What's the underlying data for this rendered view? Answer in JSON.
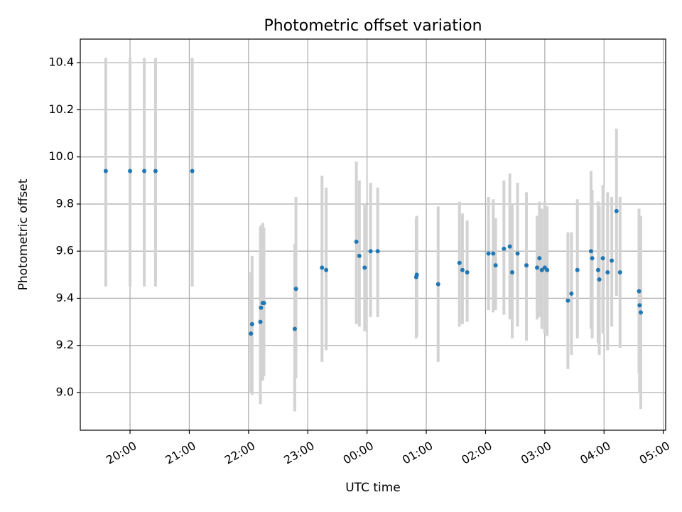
{
  "chart_data": {
    "type": "scatter",
    "title": "Photometric offset variation",
    "xlabel": "UTC time",
    "ylabel": "Photometric offset",
    "x_units": "hours relative to 00:00 UTC",
    "xlim": [
      -4.84,
      5.04
    ],
    "ylim": [
      8.84,
      10.5
    ],
    "x_ticks": [
      {
        "value": -4,
        "label": "20:00"
      },
      {
        "value": -3,
        "label": "21:00"
      },
      {
        "value": -2,
        "label": "22:00"
      },
      {
        "value": -1,
        "label": "23:00"
      },
      {
        "value": 0,
        "label": "00:00"
      },
      {
        "value": 1,
        "label": "01:00"
      },
      {
        "value": 2,
        "label": "02:00"
      },
      {
        "value": 3,
        "label": "03:00"
      },
      {
        "value": 4,
        "label": "04:00"
      },
      {
        "value": 5,
        "label": "05:00"
      }
    ],
    "y_ticks": [
      {
        "value": 9.0,
        "label": "9.0"
      },
      {
        "value": 9.2,
        "label": "9.2"
      },
      {
        "value": 9.4,
        "label": "9.4"
      },
      {
        "value": 9.6,
        "label": "9.6"
      },
      {
        "value": 9.8,
        "label": "9.8"
      },
      {
        "value": 10.0,
        "label": "10.0"
      },
      {
        "value": 10.2,
        "label": "10.2"
      },
      {
        "value": 10.4,
        "label": "10.4"
      }
    ],
    "grid": true,
    "marker_color": "#1f77b4",
    "errorbar_color": "#d3d3d3",
    "points": [
      {
        "x": -4.41,
        "y": 9.94,
        "ylo": 9.45,
        "yhi": 10.42
      },
      {
        "x": -4.0,
        "y": 9.94,
        "ylo": 9.45,
        "yhi": 10.42
      },
      {
        "x": -3.76,
        "y": 9.94,
        "ylo": 9.45,
        "yhi": 10.42
      },
      {
        "x": -3.57,
        "y": 9.94,
        "ylo": 9.45,
        "yhi": 10.42
      },
      {
        "x": -2.95,
        "y": 9.94,
        "ylo": 9.45,
        "yhi": 10.42
      },
      {
        "x": -1.96,
        "y": 9.25,
        "ylo": 9.0,
        "yhi": 9.51
      },
      {
        "x": -1.94,
        "y": 9.29,
        "ylo": 8.99,
        "yhi": 9.58
      },
      {
        "x": -1.8,
        "y": 9.3,
        "ylo": 8.95,
        "yhi": 9.7
      },
      {
        "x": -1.79,
        "y": 9.36,
        "ylo": 9.07,
        "yhi": 9.71
      },
      {
        "x": -1.76,
        "y": 9.38,
        "ylo": 9.05,
        "yhi": 9.72
      },
      {
        "x": -1.74,
        "y": 9.38,
        "ylo": 9.07,
        "yhi": 9.7
      },
      {
        "x": -1.22,
        "y": 9.27,
        "ylo": 8.92,
        "yhi": 9.63
      },
      {
        "x": -1.2,
        "y": 9.44,
        "ylo": 9.06,
        "yhi": 9.83
      },
      {
        "x": -0.76,
        "y": 9.53,
        "ylo": 9.13,
        "yhi": 9.92
      },
      {
        "x": -0.69,
        "y": 9.52,
        "ylo": 9.18,
        "yhi": 9.87
      },
      {
        "x": -0.18,
        "y": 9.64,
        "ylo": 9.29,
        "yhi": 9.98
      },
      {
        "x": -0.13,
        "y": 9.58,
        "ylo": 9.28,
        "yhi": 9.9
      },
      {
        "x": -0.04,
        "y": 9.53,
        "ylo": 9.26,
        "yhi": 9.8
      },
      {
        "x": 0.06,
        "y": 9.6,
        "ylo": 9.32,
        "yhi": 9.89
      },
      {
        "x": 0.18,
        "y": 9.6,
        "ylo": 9.32,
        "yhi": 9.87
      },
      {
        "x": 0.83,
        "y": 9.49,
        "ylo": 9.23,
        "yhi": 9.74
      },
      {
        "x": 0.84,
        "y": 9.5,
        "ylo": 9.24,
        "yhi": 9.75
      },
      {
        "x": 1.2,
        "y": 9.46,
        "ylo": 9.13,
        "yhi": 9.79
      },
      {
        "x": 1.56,
        "y": 9.55,
        "ylo": 9.28,
        "yhi": 9.81
      },
      {
        "x": 1.61,
        "y": 9.52,
        "ylo": 9.29,
        "yhi": 9.76
      },
      {
        "x": 1.69,
        "y": 9.51,
        "ylo": 9.3,
        "yhi": 9.73
      },
      {
        "x": 2.05,
        "y": 9.59,
        "ylo": 9.35,
        "yhi": 9.83
      },
      {
        "x": 2.13,
        "y": 9.59,
        "ylo": 9.34,
        "yhi": 9.82
      },
      {
        "x": 2.17,
        "y": 9.54,
        "ylo": 9.35,
        "yhi": 9.74
      },
      {
        "x": 2.31,
        "y": 9.61,
        "ylo": 9.33,
        "yhi": 9.9
      },
      {
        "x": 2.41,
        "y": 9.62,
        "ylo": 9.31,
        "yhi": 9.93
      },
      {
        "x": 2.45,
        "y": 9.51,
        "ylo": 9.23,
        "yhi": 9.8
      },
      {
        "x": 2.54,
        "y": 9.59,
        "ylo": 9.28,
        "yhi": 9.89
      },
      {
        "x": 2.69,
        "y": 9.54,
        "ylo": 9.22,
        "yhi": 9.85
      },
      {
        "x": 2.87,
        "y": 9.53,
        "ylo": 9.31,
        "yhi": 9.75
      },
      {
        "x": 2.91,
        "y": 9.57,
        "ylo": 9.32,
        "yhi": 9.81
      },
      {
        "x": 2.95,
        "y": 9.52,
        "ylo": 9.27,
        "yhi": 9.78
      },
      {
        "x": 3.0,
        "y": 9.53,
        "ylo": 9.25,
        "yhi": 9.81
      },
      {
        "x": 3.04,
        "y": 9.52,
        "ylo": 9.24,
        "yhi": 9.79
      },
      {
        "x": 3.39,
        "y": 9.39,
        "ylo": 9.1,
        "yhi": 9.68
      },
      {
        "x": 3.45,
        "y": 9.42,
        "ylo": 9.16,
        "yhi": 9.68
      },
      {
        "x": 3.55,
        "y": 9.52,
        "ylo": 9.23,
        "yhi": 9.82
      },
      {
        "x": 3.78,
        "y": 9.6,
        "ylo": 9.27,
        "yhi": 9.94
      },
      {
        "x": 3.8,
        "y": 9.57,
        "ylo": 9.23,
        "yhi": 9.86
      },
      {
        "x": 3.9,
        "y": 9.52,
        "ylo": 9.21,
        "yhi": 9.81
      },
      {
        "x": 3.92,
        "y": 9.48,
        "ylo": 9.16,
        "yhi": 9.79
      },
      {
        "x": 3.98,
        "y": 9.57,
        "ylo": 9.25,
        "yhi": 9.88
      },
      {
        "x": 4.06,
        "y": 9.51,
        "ylo": 9.18,
        "yhi": 9.85
      },
      {
        "x": 4.13,
        "y": 9.56,
        "ylo": 9.28,
        "yhi": 9.83
      },
      {
        "x": 4.21,
        "y": 9.77,
        "ylo": 9.41,
        "yhi": 10.12
      },
      {
        "x": 4.27,
        "y": 9.51,
        "ylo": 9.19,
        "yhi": 9.83
      },
      {
        "x": 4.59,
        "y": 9.43,
        "ylo": 9.08,
        "yhi": 9.78
      },
      {
        "x": 4.6,
        "y": 9.37,
        "ylo": 9.0,
        "yhi": 9.74
      },
      {
        "x": 4.62,
        "y": 9.34,
        "ylo": 8.93,
        "yhi": 9.75
      }
    ]
  }
}
